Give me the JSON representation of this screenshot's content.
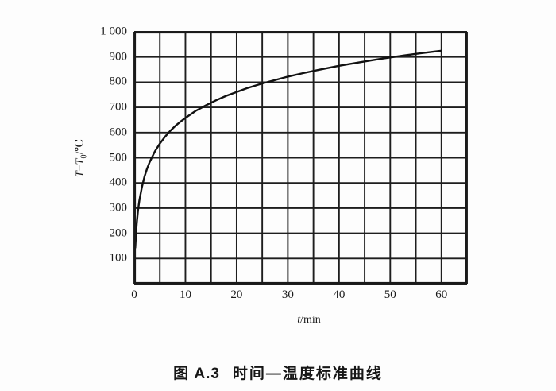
{
  "figure": {
    "caption": {
      "label": "图 A.3",
      "text": "时间—温度标准曲线"
    }
  },
  "colors": {
    "ink": "#1a1a1a",
    "grid": "#1e1e1e",
    "curve": "#111111",
    "background": "#fdfdfd"
  },
  "chart_data": {
    "type": "line",
    "title": "图 A.3 时间—温度标准曲线",
    "xlabel": "t/min",
    "ylabel": "T−T₀/℃",
    "xlabel_parts": [
      {
        "text": "t",
        "style": "italic"
      },
      {
        "text": "/min",
        "style": "normal"
      }
    ],
    "ylabel_parts": [
      {
        "text": "T",
        "style": "italic"
      },
      {
        "text": "−",
        "style": "normal"
      },
      {
        "text": "T",
        "style": "italic"
      },
      {
        "text": "0",
        "style": "sub"
      },
      {
        "text": "/℃",
        "style": "normal"
      }
    ],
    "xlim": [
      0,
      65
    ],
    "ylim": [
      0,
      1000
    ],
    "x_grid_step": 5,
    "y_grid_step": 100,
    "grid": true,
    "legend_position": "none",
    "x_tick_labels": [
      {
        "value": 0,
        "label": "0"
      },
      {
        "value": 10,
        "label": "10"
      },
      {
        "value": 20,
        "label": "20"
      },
      {
        "value": 30,
        "label": "30"
      },
      {
        "value": 40,
        "label": "40"
      },
      {
        "value": 50,
        "label": "50"
      },
      {
        "value": 60,
        "label": "60"
      }
    ],
    "y_tick_labels": [
      {
        "value": 100,
        "label": "100"
      },
      {
        "value": 200,
        "label": "200"
      },
      {
        "value": 300,
        "label": "300"
      },
      {
        "value": 400,
        "label": "400"
      },
      {
        "value": 500,
        "label": "500"
      },
      {
        "value": 600,
        "label": "600"
      },
      {
        "value": 700,
        "label": "700"
      },
      {
        "value": 800,
        "label": "800"
      },
      {
        "value": 900,
        "label": "900"
      },
      {
        "value": 1000,
        "label": "1 000"
      }
    ],
    "series": [
      {
        "name": "时间—温度标准曲线",
        "x": [
          0.2,
          0.35,
          0.5,
          0.75,
          1,
          1.5,
          2,
          2.5,
          3,
          4,
          5,
          6,
          7,
          8,
          9,
          10,
          12,
          14,
          16,
          18,
          20,
          22,
          25,
          28,
          30,
          33,
          36,
          40,
          44,
          48,
          52,
          56,
          60
        ],
        "y": [
          143,
          200,
          241,
          292,
          329,
          384,
          425,
          456,
          482,
          524,
          556,
          583,
          606,
          626,
          643,
          658,
          686,
          708,
          728,
          746,
          761,
          776,
          795,
          811,
          822,
          836,
          849,
          865,
          879,
          892,
          904,
          915,
          925
        ]
      }
    ]
  }
}
